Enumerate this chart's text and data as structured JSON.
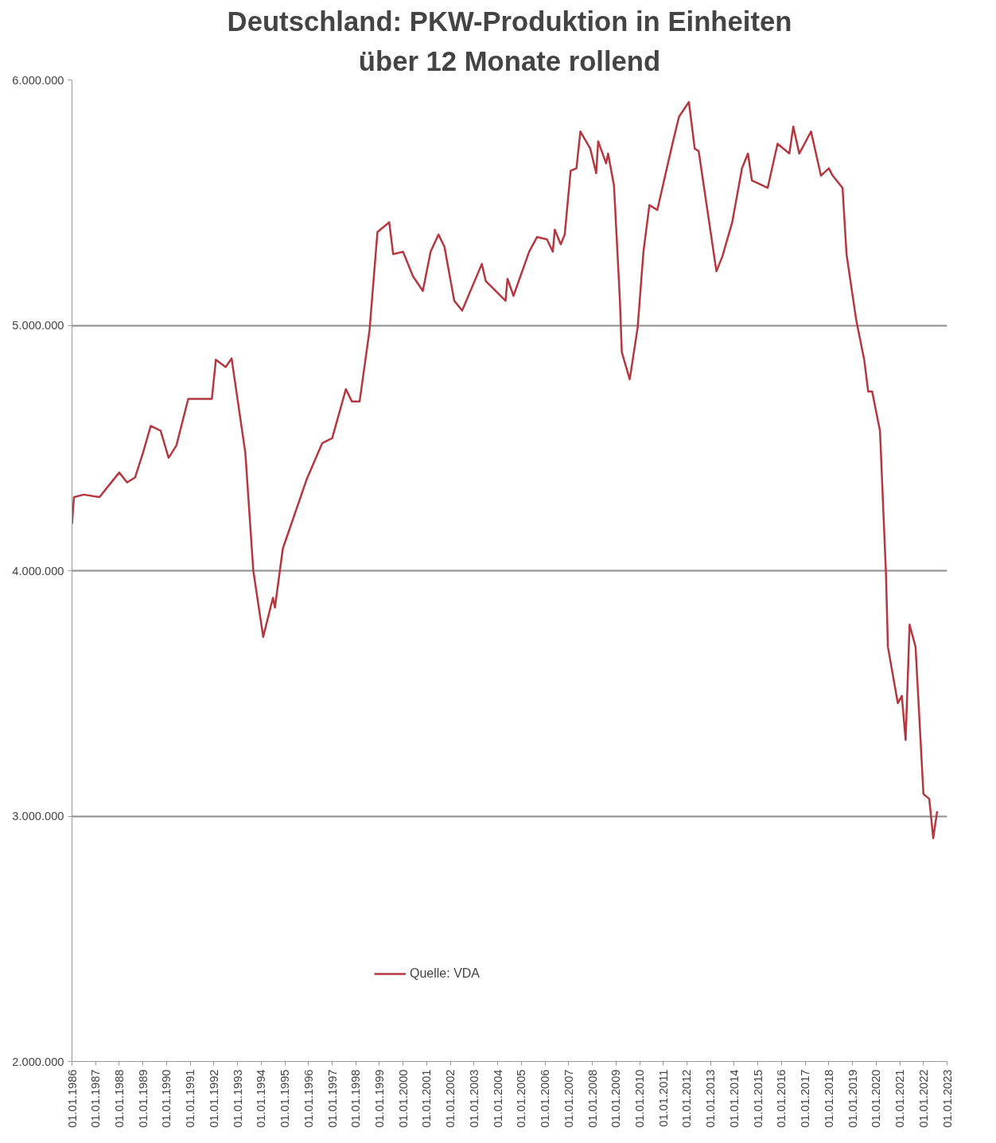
{
  "chart_data": {
    "type": "line",
    "title": "Deutschland: PKW-Produktion in Einheiten",
    "subtitle": "über 12 Monate rollend",
    "x": [
      "1986-01",
      "1986-02",
      "1986-07",
      "1987-03",
      "1987-07",
      "1988-01",
      "1988-05",
      "1988-09",
      "1989-01",
      "1989-05",
      "1989-10",
      "1990-02",
      "1990-06",
      "1990-12",
      "1991-12",
      "1992-02",
      "1992-07",
      "1992-10",
      "1993-05",
      "1993-09",
      "1994-02",
      "1994-07",
      "1994-08",
      "1994-12",
      "1995-12",
      "1996-08",
      "1997-01",
      "1997-08",
      "1997-11",
      "1998-03",
      "1998-08",
      "1998-12",
      "1999-06",
      "1999-08",
      "2000-01",
      "2000-06",
      "2000-11",
      "2001-03",
      "2001-07",
      "2001-10",
      "2002-03",
      "2002-07",
      "2003-05",
      "2003-07",
      "2004-05",
      "2004-06",
      "2004-09",
      "2005-05",
      "2005-09",
      "2006-02",
      "2006-05",
      "2006-06",
      "2006-09",
      "2006-11",
      "2007-02",
      "2007-05",
      "2007-07",
      "2007-12",
      "2008-03",
      "2008-04",
      "2008-08",
      "2008-09",
      "2008-12",
      "2009-03",
      "2009-04",
      "2009-08",
      "2009-12",
      "2010-03",
      "2010-06",
      "2010-10",
      "2011-06",
      "2011-09",
      "2012-02",
      "2012-05",
      "2012-07",
      "2013-04",
      "2013-07",
      "2013-12",
      "2014-05",
      "2014-08",
      "2014-10",
      "2015-06",
      "2015-11",
      "2016-05",
      "2016-07",
      "2016-10",
      "2017-04",
      "2017-09",
      "2018-01",
      "2018-03",
      "2018-08",
      "2018-10",
      "2019-03",
      "2019-07",
      "2019-09",
      "2019-11",
      "2020-03",
      "2020-06",
      "2020-07",
      "2020-12",
      "2021-02",
      "2021-04",
      "2021-06",
      "2021-09",
      "2022-01",
      "2022-04",
      "2022-06",
      "2022-08"
    ],
    "series": [
      {
        "name": "Quelle: VDA",
        "color": "#b5373f",
        "values": [
          4190000,
          4300000,
          4310000,
          4300000,
          4340000,
          4400000,
          4360000,
          4380000,
          4480000,
          4590000,
          4570000,
          4460000,
          4510000,
          4700000,
          4700000,
          4860000,
          4830000,
          4865000,
          4480000,
          4000000,
          3730000,
          3890000,
          3850000,
          4090000,
          4370000,
          4520000,
          4540000,
          4740000,
          4690000,
          4690000,
          4980000,
          5380000,
          5420000,
          5290000,
          5300000,
          5200000,
          5140000,
          5300000,
          5370000,
          5320000,
          5100000,
          5060000,
          5250000,
          5180000,
          5100000,
          5190000,
          5120000,
          5300000,
          5360000,
          5350000,
          5300000,
          5390000,
          5330000,
          5370000,
          5630000,
          5640000,
          5790000,
          5720000,
          5620000,
          5750000,
          5660000,
          5700000,
          5570000,
          5110000,
          4890000,
          4780000,
          4990000,
          5300000,
          5490000,
          5470000,
          5750000,
          5850000,
          5910000,
          5720000,
          5710000,
          5220000,
          5280000,
          5420000,
          5640000,
          5700000,
          5590000,
          5560000,
          5740000,
          5700000,
          5810000,
          5700000,
          5790000,
          5610000,
          5640000,
          5610000,
          5560000,
          5290000,
          5020000,
          4860000,
          4730000,
          4730000,
          4570000,
          3990000,
          3690000,
          3460000,
          3490000,
          3310000,
          3780000,
          3690000,
          3090000,
          3070000,
          2910000,
          3020000
        ]
      }
    ],
    "xlim": [
      "1986-01-01",
      "2023-01-01"
    ],
    "xticks": [
      {
        "value": "1986-01-01",
        "label": "01.01.1986"
      },
      {
        "value": "1987-01-01",
        "label": "01.01.1987"
      },
      {
        "value": "1988-01-01",
        "label": "01.01.1988"
      },
      {
        "value": "1989-01-01",
        "label": "01.01.1989"
      },
      {
        "value": "1990-01-01",
        "label": "01.01.1990"
      },
      {
        "value": "1991-01-01",
        "label": "01.01.1991"
      },
      {
        "value": "1992-01-01",
        "label": "01.01.1992"
      },
      {
        "value": "1993-01-01",
        "label": "01.01.1993"
      },
      {
        "value": "1994-01-01",
        "label": "01.01.1994"
      },
      {
        "value": "1995-01-01",
        "label": "01.01.1995"
      },
      {
        "value": "1996-01-01",
        "label": "01.01.1996"
      },
      {
        "value": "1997-01-01",
        "label": "01.01.1997"
      },
      {
        "value": "1998-01-01",
        "label": "01.01.1998"
      },
      {
        "value": "1999-01-01",
        "label": "01.01.1999"
      },
      {
        "value": "2000-01-01",
        "label": "01.01.2000"
      },
      {
        "value": "2001-01-01",
        "label": "01.01.2001"
      },
      {
        "value": "2002-01-01",
        "label": "01.01.2002"
      },
      {
        "value": "2003-01-01",
        "label": "01.01.2003"
      },
      {
        "value": "2004-01-01",
        "label": "01.01.2004"
      },
      {
        "value": "2005-01-01",
        "label": "01.01.2005"
      },
      {
        "value": "2006-01-01",
        "label": "01.01.2006"
      },
      {
        "value": "2007-01-01",
        "label": "01.01.2007"
      },
      {
        "value": "2008-01-01",
        "label": "01.01.2008"
      },
      {
        "value": "2009-01-01",
        "label": "01.01.2009"
      },
      {
        "value": "2010-01-01",
        "label": "01.01.2010"
      },
      {
        "value": "2011-01-01",
        "label": "01.01.2011"
      },
      {
        "value": "2012-01-01",
        "label": "01.01.2012"
      },
      {
        "value": "2013-01-01",
        "label": "01.01.2013"
      },
      {
        "value": "2014-01-01",
        "label": "01.01.2014"
      },
      {
        "value": "2015-01-01",
        "label": "01.01.2015"
      },
      {
        "value": "2016-01-01",
        "label": "01.01.2016"
      },
      {
        "value": "2017-01-01",
        "label": "01.01.2017"
      },
      {
        "value": "2018-01-01",
        "label": "01.01.2018"
      },
      {
        "value": "2019-01-01",
        "label": "01.01.2019"
      },
      {
        "value": "2020-01-01",
        "label": "01.01.2020"
      },
      {
        "value": "2021-01-01",
        "label": "01.01.2021"
      },
      {
        "value": "2022-01-01",
        "label": "01.01.2022"
      },
      {
        "value": "2023-01-01",
        "label": "01.01.2023"
      }
    ],
    "ylim": [
      2000000,
      6000000
    ],
    "yticks": [
      {
        "value": 2000000,
        "label": "2.000.000"
      },
      {
        "value": 3000000,
        "label": "3.000.000"
      },
      {
        "value": 4000000,
        "label": "4.000.000"
      },
      {
        "value": 5000000,
        "label": "5.000.000"
      },
      {
        "value": 6000000,
        "label": "6.000.000"
      }
    ],
    "grid": "y",
    "legend": "bottom left",
    "line_style": "solid",
    "marker": "none"
  }
}
